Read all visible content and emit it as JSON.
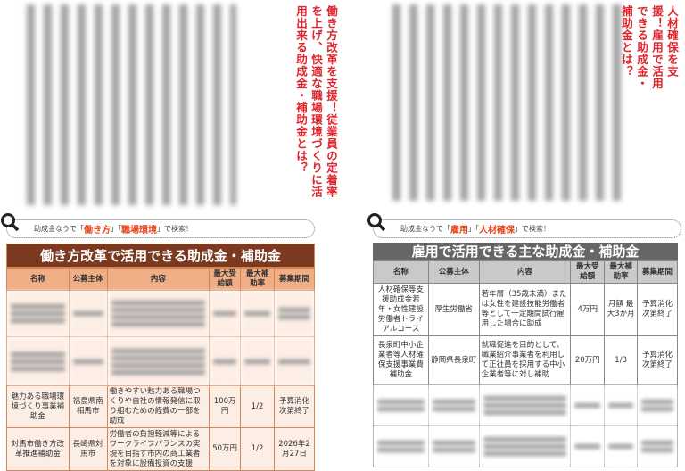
{
  "left_page": {
    "title": "働き方改革を支援！従業員の定着率を上げ、快適な職場環境づくりに活用出来る助成金・補助金とは？",
    "search": {
      "prefix": "助成金なうで",
      "open": "「",
      "kw1": "働き方",
      "mid": "」「",
      "kw2": "職場環境",
      "close": "」",
      "suffix": "で検索！"
    },
    "table": {
      "title": "働き方改革で活用できる助成金・補助金",
      "headers": [
        "名称",
        "公募主体",
        "内容",
        "最大受給額",
        "最大補助率",
        "募集期間"
      ],
      "rows": [
        [
          "魅力ある職場環境づくり事業補助金",
          "福島県南相馬市",
          "働きやすい魅力ある職場つくりや自社の情報発信に取り組むための経費の一部を助成",
          "100万円",
          "1/2",
          "予算消化次第終了"
        ],
        [
          "対馬市働き方改革推進補助金",
          "長崎県対馬市",
          "労働者の負担軽減等によるワークライフバランスの実現を目指す市内の商工業者を対象に設備投資の支援",
          "50万円",
          "1/2",
          "2026年2月27日"
        ]
      ]
    }
  },
  "right_page": {
    "title": "人材確保を支援！雇用で活用できる助成金・補助金とは？",
    "search": {
      "prefix": "助成金なうで",
      "open": "「",
      "kw1": "雇用",
      "mid": "」「",
      "kw2": "人材確保",
      "close": "」",
      "suffix": "で検索！"
    },
    "table": {
      "title": "雇用で活用できる主な助成金・補助金",
      "headers": [
        "名称",
        "公募主体",
        "内容",
        "最大受給額",
        "最大補助率",
        "募集期間"
      ],
      "rows": [
        [
          "人材確保等支援助成金若年・女性建設労働者トライアルコース",
          "厚生労働省",
          "若年層（35歳未満）または女性を建設技能労働者等として一定期間試行雇用した場合に助成",
          "4万円",
          "月額 最大3か月",
          "予算消化次第終了"
        ],
        [
          "長泉町中小企業者等人材確保支援事業費補助金",
          "静岡県長泉町",
          "就職促進を目的として、職業紹介事業者を利用して正社員を採用する中小企業者等に対し補助",
          "20万円",
          "1/3",
          "予算消化次第終了"
        ]
      ]
    }
  },
  "colors": {
    "accent_red": "#e0242e",
    "keyword_orange": "#e8451c",
    "left_table_title": "#7b3a20",
    "right_table_title": "#666666"
  }
}
